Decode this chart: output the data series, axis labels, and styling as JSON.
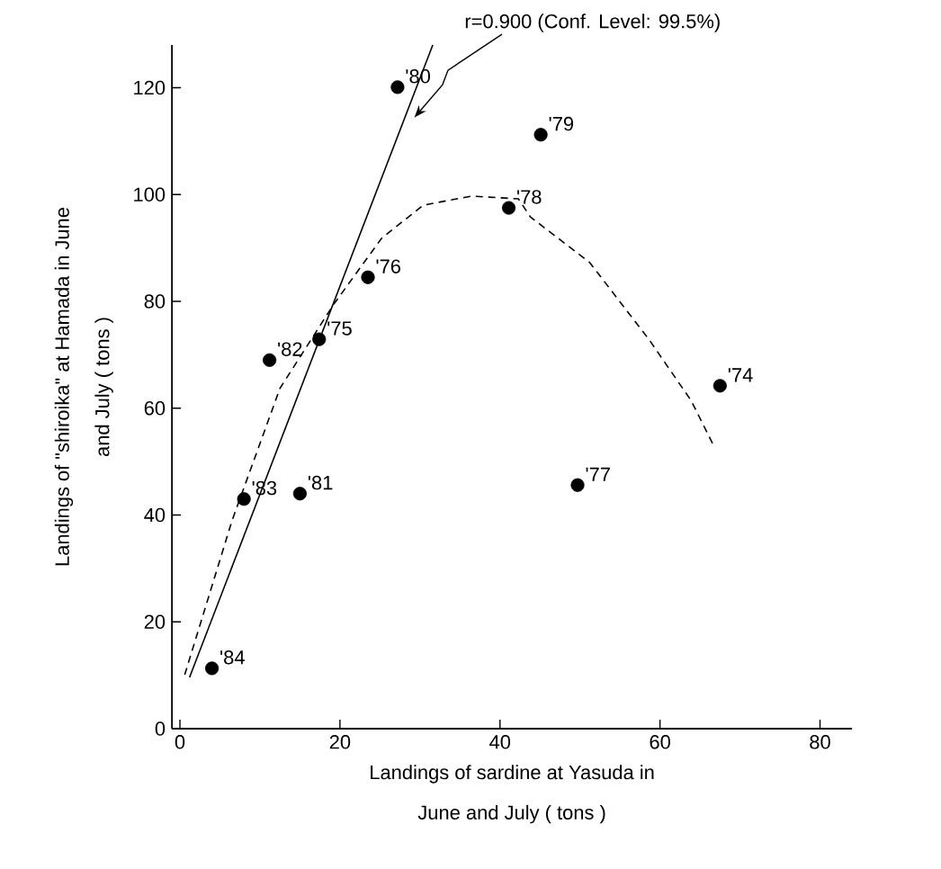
{
  "chart_data": {
    "type": "scatter",
    "xlabel": "Landings of sardine at Yasuda in June and July ( tons )",
    "ylabel": "Landings of \"shiroika\" at Hamada in June and July ( tons )",
    "xlim": [
      -1,
      84
    ],
    "ylim": [
      0,
      128
    ],
    "xticks": [
      0,
      20,
      40,
      60,
      80
    ],
    "yticks": [
      0,
      20,
      40,
      60,
      80,
      100,
      120
    ],
    "series": [
      {
        "type": "scatter",
        "color": "#000000",
        "marker": "circle",
        "x": [
          4.0,
          8.0,
          15.0,
          11.2,
          17.4,
          23.5,
          27.2,
          41.1,
          45.1,
          67.5,
          49.7
        ],
        "values": [
          11.3,
          43.0,
          44.0,
          69.0,
          72.9,
          84.5,
          120.1,
          97.5,
          111.2,
          64.2,
          45.6
        ]
      },
      {
        "type": "line",
        "color": "#000000",
        "line_style": "solid",
        "marker": "none",
        "x": [
          1.2,
          31.6
        ],
        "values": [
          9.6,
          128
        ]
      },
      {
        "type": "line",
        "color": "#000000",
        "line_style": "dashed",
        "marker": "none",
        "x": [
          0.6,
          6.5,
          12.5,
          19.2,
          25.2,
          30.4,
          36.4,
          42.3,
          43.8,
          51.2,
          58.7,
          63.9,
          66.7
        ],
        "values": [
          10.1,
          38.9,
          63.7,
          79.4,
          91.8,
          98,
          99.7,
          99.2,
          95.8,
          87.3,
          72.7,
          61.4,
          53
        ]
      }
    ],
    "annotations": [
      {
        "text": "r=0.900 (Conf. Level: 99.5%)",
        "x": 29.3,
        "y": 114.4
      },
      {
        "text": "'84",
        "x": 4.0,
        "y": 11.3
      },
      {
        "text": "'83",
        "x": 8.0,
        "y": 43.0
      },
      {
        "text": "'81",
        "x": 15.0,
        "y": 44.0
      },
      {
        "text": "'82",
        "x": 11.2,
        "y": 69.0
      },
      {
        "text": "'75",
        "x": 17.4,
        "y": 72.9
      },
      {
        "text": "'76",
        "x": 23.5,
        "y": 84.5
      },
      {
        "text": "'80",
        "x": 27.2,
        "y": 120.1
      },
      {
        "text": "'78",
        "x": 41.1,
        "y": 97.5
      },
      {
        "text": "'79",
        "x": 45.1,
        "y": 111.2
      },
      {
        "text": "'74",
        "x": 67.5,
        "y": 64.2
      },
      {
        "text": "'77",
        "x": 49.7,
        "y": 45.6
      }
    ]
  }
}
